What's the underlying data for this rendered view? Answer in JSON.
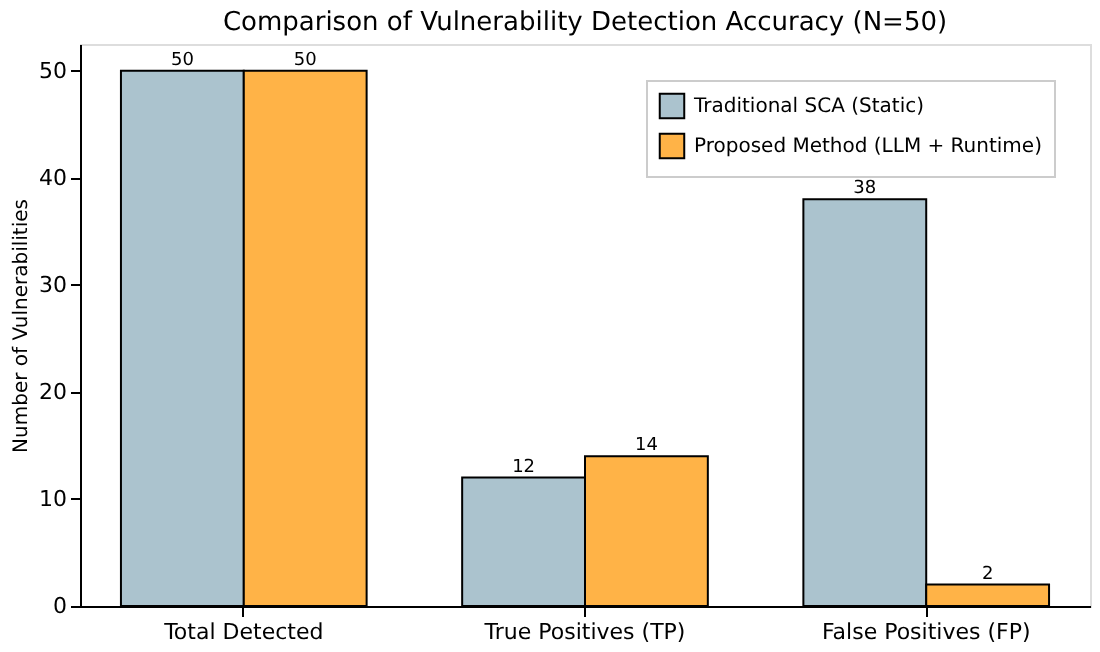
{
  "chart_data": {
    "type": "bar",
    "title": "Comparison of Vulnerability Detection Accuracy (N=50)",
    "ylabel": "Number of Vulnerabilities",
    "categories": [
      "Total Detected",
      "True Positives (TP)",
      "False Positives (FP)"
    ],
    "series": [
      {
        "name": "Traditional SCA (Static)",
        "color": "#abc3ce",
        "values": [
          50,
          12,
          38
        ]
      },
      {
        "name": "Proposed Method (LLM + Runtime)",
        "color": "#ffb347",
        "values": [
          50,
          14,
          2
        ]
      }
    ],
    "ylim": [
      0,
      52.5
    ],
    "yticks": [
      0,
      10,
      20,
      30,
      40,
      50
    ],
    "data_labels": true,
    "legend": "top right",
    "grid": false
  }
}
